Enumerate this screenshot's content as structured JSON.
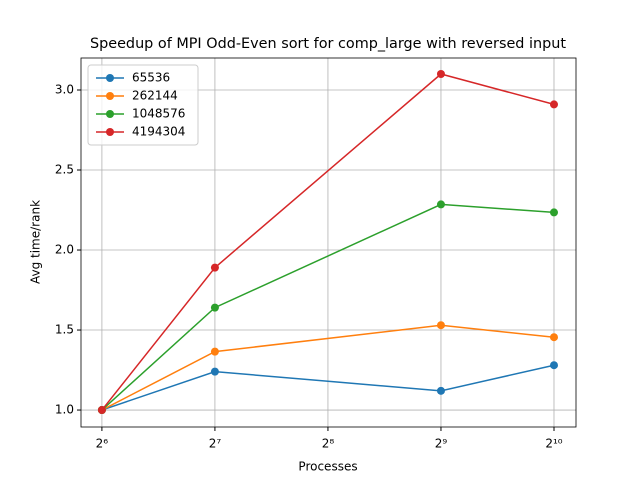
{
  "chart_data": {
    "type": "line",
    "title": "Speedup of MPI Odd-Even sort for comp_large with reversed input",
    "x_label": "Processes",
    "y_label": "Avg time/rank",
    "x": [
      64,
      128,
      512,
      1024
    ],
    "series": [
      {
        "name": "65536",
        "color": "#1f77b4",
        "values": [
          1.0,
          1.24,
          1.12,
          1.28
        ]
      },
      {
        "name": "262144",
        "color": "#ff7f0e",
        "values": [
          1.0,
          1.365,
          1.53,
          1.455
        ]
      },
      {
        "name": "1048576",
        "color": "#2ca02c",
        "values": [
          1.0,
          1.64,
          2.285,
          2.235
        ]
      },
      {
        "name": "4194304",
        "color": "#d62728",
        "values": [
          1.0,
          1.89,
          3.1,
          2.91
        ]
      }
    ],
    "x_scale": "log2",
    "xlim": [
      56.3,
      1172
    ],
    "xticks": [
      {
        "value": 64,
        "label": "2⁶"
      },
      {
        "value": 128,
        "label": "2⁷"
      },
      {
        "value": 256,
        "label": "2⁸"
      },
      {
        "value": 512,
        "label": "2⁹"
      },
      {
        "value": 1024,
        "label": "2¹⁰"
      }
    ],
    "ylim": [
      0.894,
      3.2
    ],
    "yticks": [
      {
        "value": 1.0,
        "label": "1.0"
      },
      {
        "value": 1.5,
        "label": "1.5"
      },
      {
        "value": 2.0,
        "label": "2.0"
      },
      {
        "value": 2.5,
        "label": "2.5"
      },
      {
        "value": 3.0,
        "label": "3.0"
      }
    ],
    "grid": true,
    "legend": "upper-left"
  }
}
